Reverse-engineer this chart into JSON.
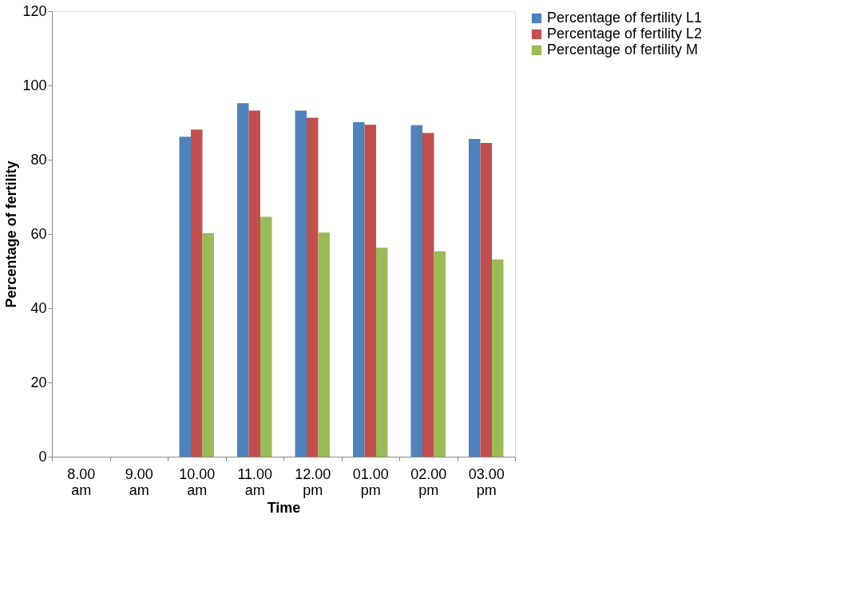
{
  "chart_data": {
    "type": "bar",
    "xlabel": "Time",
    "ylabel": "Percentage of  fertility",
    "categories": [
      "8.00 am",
      "9.00 am",
      "10.00 am",
      "11.00 am",
      "12.00 pm",
      "01.00 pm",
      "02.00 pm",
      "03.00 pm"
    ],
    "series": [
      {
        "name": "Percentage of  fertility L1",
        "color": "#4f81bd",
        "values": [
          0,
          0,
          86.2,
          95.2,
          93.2,
          90.1,
          89.3,
          85.6
        ]
      },
      {
        "name": "Percentage of  fertility L2",
        "color": "#c0504d",
        "values": [
          0,
          0,
          88.1,
          93.2,
          91.3,
          89.4,
          87.2,
          84.5
        ]
      },
      {
        "name": "Percentage of  fertility M",
        "color": "#9bbb59",
        "values": [
          0,
          0,
          60.2,
          64.6,
          60.4,
          56.3,
          55.3,
          53.1
        ]
      }
    ],
    "ylim": [
      0,
      120
    ],
    "yticks": [
      0,
      20,
      40,
      60,
      80,
      100,
      120
    ],
    "grid": false,
    "legend": "right"
  }
}
